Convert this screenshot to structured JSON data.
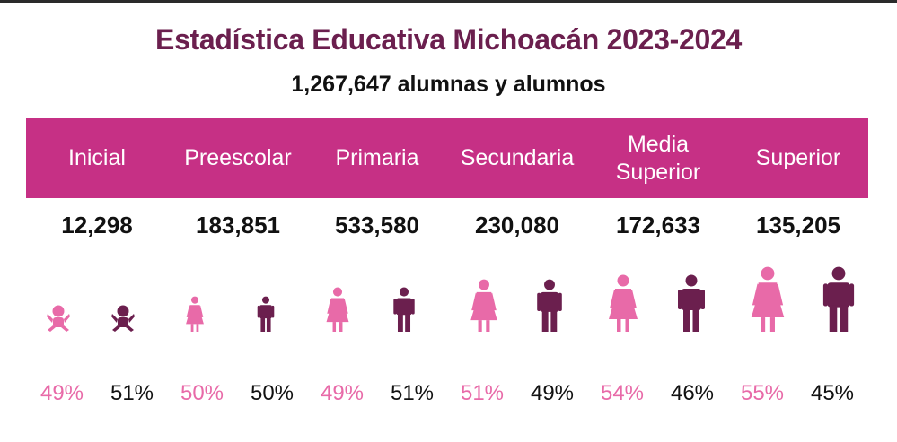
{
  "title": "Estadística Educativa Michoacán 2023-2024",
  "subtitle": "1,267,647 alumnas y alumnos",
  "colors": {
    "band": "#c63085",
    "title": "#6b1f4e",
    "female": "#e86aa8",
    "male": "#6b1f4e",
    "text": "#111111"
  },
  "chart_data": {
    "type": "table",
    "title": "Estadística Educativa Michoacán 2023-2024",
    "subtitle": "1,267,647 alumnas y alumnos",
    "categories": [
      "Inicial",
      "Preescolar",
      "Primaria",
      "Secundaria",
      "Media Superior",
      "Superior"
    ],
    "category_lines": [
      [
        "Inicial"
      ],
      [
        "Preescolar"
      ],
      [
        "Primaria"
      ],
      [
        "Secundaria"
      ],
      [
        "Media",
        "Superior"
      ],
      [
        "Superior"
      ]
    ],
    "totals": [
      "12,298",
      "183,851",
      "533,580",
      "230,080",
      "172,633",
      "135,205"
    ],
    "totals_value": [
      12298,
      183851,
      533580,
      230080,
      172633,
      135205
    ],
    "series": [
      {
        "name": "alumnas",
        "values": [
          49,
          50,
          49,
          51,
          54,
          55
        ],
        "labels": [
          "49%",
          "50%",
          "49%",
          "51%",
          "54%",
          "55%"
        ],
        "icon": "girl-icon",
        "color": "#e86aa8"
      },
      {
        "name": "alumnos",
        "values": [
          51,
          50,
          51,
          49,
          46,
          45
        ],
        "labels": [
          "51%",
          "50%",
          "51%",
          "49%",
          "46%",
          "45%"
        ],
        "icon": "boy-icon",
        "color": "#6b1f4e"
      }
    ]
  }
}
